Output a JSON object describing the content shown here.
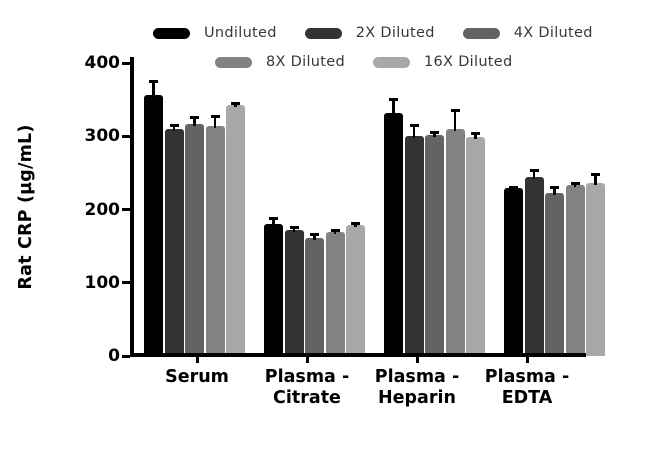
{
  "figure": {
    "background": "#ffffff",
    "axis_color": "#000000",
    "legend_text_color": "#383838"
  },
  "chart_data": {
    "type": "bar",
    "title": "",
    "xlabel": "",
    "ylabel": "Rat CRP (µg/mL)",
    "ylim": [
      0,
      400
    ],
    "yticks": [
      0,
      100,
      200,
      300,
      400
    ],
    "grid": false,
    "legend_position": "top",
    "error_bars": "upper",
    "categories": [
      "Serum",
      "Plasma - Citrate",
      "Plasma - Heparin",
      "Plasma - EDTA"
    ],
    "category_label_lines": [
      [
        "Serum"
      ],
      [
        "Plasma -",
        "Citrate"
      ],
      [
        "Plasma -",
        "Heparin"
      ],
      [
        "Plasma -",
        "EDTA"
      ]
    ],
    "series": [
      {
        "name": "Undiluted",
        "color": "#000000",
        "values": [
          356,
          180,
          332,
          229
        ],
        "errors": [
          20,
          9,
          19,
          2
        ]
      },
      {
        "name": "2X Diluted",
        "color": "#333333",
        "values": [
          310,
          172,
          300,
          245
        ],
        "errors": [
          6,
          4,
          16,
          9
        ]
      },
      {
        "name": "4X Diluted",
        "color": "#636363",
        "values": [
          317,
          161,
          302,
          222
        ],
        "errors": [
          9,
          5,
          4,
          9
        ]
      },
      {
        "name": "8X Diluted",
        "color": "#828282",
        "values": [
          314,
          169,
          310,
          233
        ],
        "errors": [
          14,
          3,
          26,
          3
        ]
      },
      {
        "name": "16X Diluted",
        "color": "#a8a8a8",
        "values": [
          343,
          179,
          299,
          236
        ],
        "errors": [
          3,
          2,
          5,
          13
        ]
      }
    ]
  }
}
